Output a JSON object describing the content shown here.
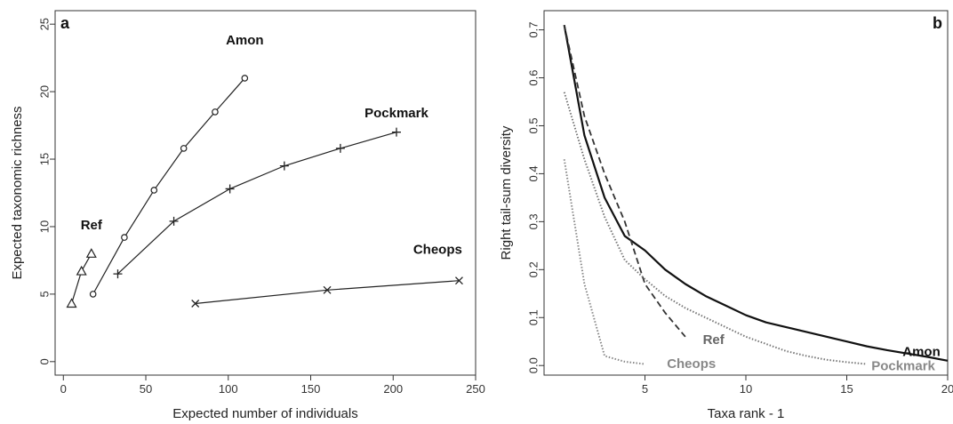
{
  "chart_data": [
    {
      "panel": "a",
      "type": "line",
      "xlabel": "Expected number of individuals",
      "ylabel": "Expected taxonomic richness",
      "xlim": [
        -5,
        250
      ],
      "ylim": [
        -1,
        26
      ],
      "xticks": [
        0,
        50,
        100,
        150,
        200,
        250
      ],
      "yticks": [
        0,
        5,
        10,
        15,
        20,
        25
      ],
      "series": [
        {
          "name": "Ref",
          "marker": "triangle",
          "color": "#222222",
          "x": [
            5,
            11,
            17
          ],
          "y": [
            4.3,
            6.7,
            8.0
          ]
        },
        {
          "name": "Amon",
          "marker": "circle",
          "color": "#222222",
          "x": [
            18,
            37,
            55,
            73,
            92,
            110
          ],
          "y": [
            5.0,
            9.2,
            12.7,
            15.8,
            18.5,
            21.0
          ]
        },
        {
          "name": "Pockmark",
          "marker": "plus",
          "color": "#222222",
          "x": [
            33,
            67,
            101,
            134,
            168,
            202
          ],
          "y": [
            6.5,
            10.4,
            12.8,
            14.5,
            15.8,
            17.0
          ]
        },
        {
          "name": "Cheops",
          "marker": "cross",
          "color": "#222222",
          "x": [
            80,
            160,
            240
          ],
          "y": [
            4.3,
            5.3,
            6.0
          ]
        }
      ]
    },
    {
      "panel": "b",
      "type": "line",
      "xlabel": "Taxa rank - 1",
      "ylabel": "Right tail-sum diversity",
      "xlim": [
        0,
        20
      ],
      "ylim": [
        -0.02,
        0.74
      ],
      "xticks": [
        5,
        10,
        15,
        20
      ],
      "yticks": [
        0.0,
        0.1,
        0.2,
        0.3,
        0.4,
        0.5,
        0.6,
        0.7
      ],
      "series": [
        {
          "name": "Amon",
          "style": "solid",
          "color": "#111111",
          "x": [
            1,
            2,
            3,
            4,
            5,
            6,
            7,
            8,
            9,
            10,
            11,
            12,
            13,
            14,
            15,
            16,
            17,
            18,
            19,
            20
          ],
          "y": [
            0.71,
            0.48,
            0.35,
            0.27,
            0.24,
            0.2,
            0.17,
            0.145,
            0.125,
            0.105,
            0.09,
            0.08,
            0.07,
            0.06,
            0.05,
            0.04,
            0.032,
            0.025,
            0.018,
            0.01
          ]
        },
        {
          "name": "Ref",
          "style": "dashed",
          "color": "#333333",
          "x": [
            1,
            2,
            3,
            4,
            5,
            6,
            7
          ],
          "y": [
            0.71,
            0.52,
            0.4,
            0.3,
            0.17,
            0.11,
            0.06
          ]
        },
        {
          "name": "Pockmark",
          "style": "dotted",
          "color": "#777777",
          "x": [
            1,
            2,
            3,
            4,
            5,
            6,
            7,
            8,
            9,
            10,
            11,
            12,
            13,
            14,
            15,
            16
          ],
          "y": [
            0.57,
            0.43,
            0.31,
            0.22,
            0.18,
            0.145,
            0.12,
            0.1,
            0.08,
            0.06,
            0.045,
            0.03,
            0.02,
            0.012,
            0.007,
            0.003
          ]
        },
        {
          "name": "Cheops",
          "style": "dotted",
          "color": "#888888",
          "x": [
            1,
            2,
            3,
            4,
            5
          ],
          "y": [
            0.43,
            0.17,
            0.02,
            0.008,
            0.003
          ]
        }
      ]
    }
  ]
}
